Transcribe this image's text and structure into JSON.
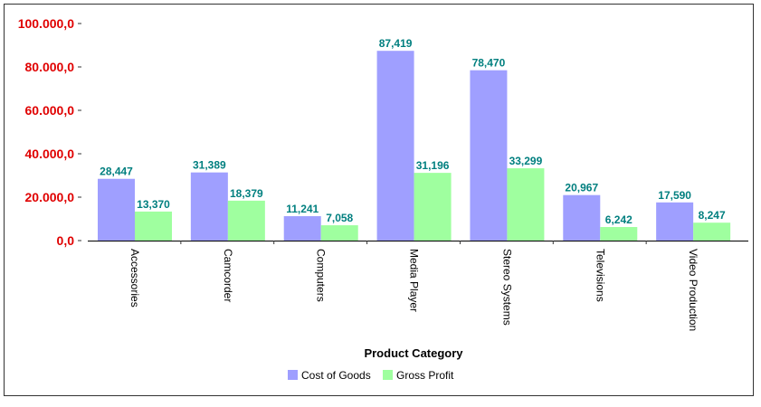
{
  "chart_data": {
    "type": "bar",
    "title": "",
    "xlabel": "Product Category",
    "ylabel": "",
    "ylim": [
      0,
      100000
    ],
    "yticks": [
      0,
      20000,
      40000,
      60000,
      80000,
      100000
    ],
    "ytick_labels": [
      "0,0",
      "20.000,0",
      "40.000,0",
      "60.000,0",
      "80.000,0",
      "100.000,0"
    ],
    "categories": [
      "Accessories",
      "Camcorder",
      "Computers",
      "Media Player",
      "Stereo Systems",
      "Televisions",
      "Video Production"
    ],
    "series": [
      {
        "name": "Cost of Goods",
        "color": "#9f9fff",
        "values": [
          28447,
          31389,
          11241,
          87419,
          78470,
          20967,
          17590
        ],
        "labels": [
          "28,447",
          "31,389",
          "11,241",
          "87,419",
          "78,470",
          "20,967",
          "17,590"
        ]
      },
      {
        "name": "Gross Profit",
        "color": "#9fff9f",
        "values": [
          13370,
          18379,
          7058,
          31196,
          33299,
          6242,
          8247
        ],
        "labels": [
          "13,370",
          "18,379",
          "7,058",
          "31,196",
          "33,299",
          "6,242",
          "8,247"
        ]
      }
    ],
    "legend_position": "bottom",
    "grid": false,
    "ytick_color": "#e00000",
    "data_label_color": "#007f7f"
  }
}
